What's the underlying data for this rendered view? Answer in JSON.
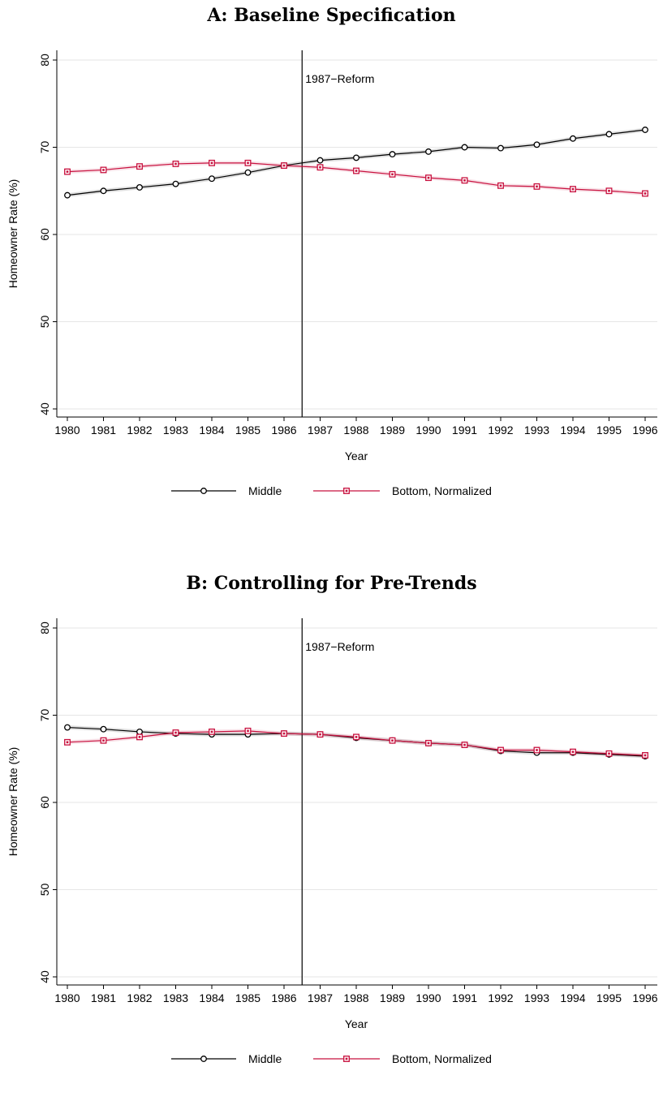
{
  "chart_data": [
    {
      "type": "line",
      "title": "A: Baseline Specification",
      "xlabel": "Year",
      "ylabel": "Homeowner Rate (%)",
      "ylim": [
        40,
        80
      ],
      "yticks": [
        40,
        50,
        60,
        70,
        80
      ],
      "grid": true,
      "legend_position": "bottom",
      "annotation": "1987−Reform",
      "categories": [
        "1980",
        "1981",
        "1982",
        "1983",
        "1984",
        "1985",
        "1986",
        "1987",
        "1988",
        "1989",
        "1990",
        "1991",
        "1992",
        "1993",
        "1994",
        "1995",
        "1996"
      ],
      "series": [
        {
          "name": "Middle",
          "color": "#000000",
          "marker": "circle",
          "values": [
            64.5,
            65.0,
            65.4,
            65.8,
            66.4,
            67.1,
            67.9,
            68.5,
            68.8,
            69.2,
            69.5,
            70.0,
            69.9,
            70.3,
            71.0,
            71.5,
            72.0
          ]
        },
        {
          "name": "Bottom, Normalized",
          "color": "#c8103e",
          "marker": "square",
          "values": [
            67.2,
            67.4,
            67.8,
            68.1,
            68.2,
            68.2,
            67.9,
            67.7,
            67.3,
            66.9,
            66.5,
            66.2,
            65.6,
            65.5,
            65.2,
            65.0,
            64.7
          ]
        }
      ]
    },
    {
      "type": "line",
      "title": "B: Controlling for Pre-Trends",
      "xlabel": "Year",
      "ylabel": "Homeowner Rate (%)",
      "ylim": [
        40,
        80
      ],
      "yticks": [
        40,
        50,
        60,
        70,
        80
      ],
      "grid": true,
      "legend_position": "bottom",
      "annotation": "1987−Reform",
      "categories": [
        "1980",
        "1981",
        "1982",
        "1983",
        "1984",
        "1985",
        "1986",
        "1987",
        "1988",
        "1989",
        "1990",
        "1991",
        "1992",
        "1993",
        "1994",
        "1995",
        "1996"
      ],
      "series": [
        {
          "name": "Middle",
          "color": "#000000",
          "marker": "circle",
          "values": [
            68.6,
            68.4,
            68.1,
            67.9,
            67.8,
            67.8,
            67.9,
            67.8,
            67.4,
            67.1,
            66.8,
            66.6,
            65.9,
            65.7,
            65.7,
            65.5,
            65.3
          ]
        },
        {
          "name": "Bottom, Normalized",
          "color": "#c8103e",
          "marker": "square",
          "values": [
            66.9,
            67.1,
            67.5,
            68.0,
            68.1,
            68.2,
            67.9,
            67.8,
            67.5,
            67.1,
            66.8,
            66.6,
            66.0,
            66.0,
            65.8,
            65.6,
            65.4
          ]
        }
      ]
    }
  ]
}
